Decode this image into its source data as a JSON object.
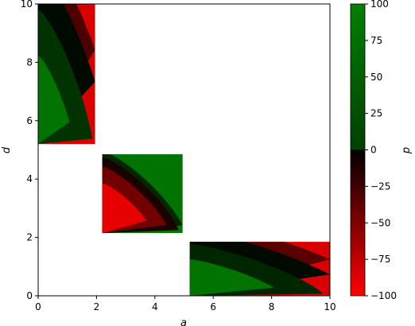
{
  "chart_data": {
    "type": "heatmap",
    "xlabel": "a",
    "ylabel": "d",
    "xlim": [
      0,
      10
    ],
    "ylim": [
      0,
      10
    ],
    "x_ticks": [
      "0",
      "2",
      "4",
      "6",
      "8",
      "10"
    ],
    "y_ticks": [
      "0",
      "2",
      "4",
      "6",
      "8",
      "10"
    ],
    "grid": false,
    "colorbar": {
      "label": "p",
      "range": [
        -100,
        100
      ],
      "ticks": [
        "100",
        "75",
        "50",
        "25",
        "0",
        "−25",
        "−50",
        "−75",
        "−100"
      ],
      "tick_values": [
        100,
        75,
        50,
        25,
        0,
        -25,
        -50,
        -75,
        -100
      ],
      "stops": [
        {
          "value": -100,
          "color": "#ff0000"
        },
        {
          "value": 0,
          "color": "#000000"
        },
        {
          "value": 100,
          "color": "#008000"
        }
      ]
    },
    "blocks": [
      {
        "a": [
          0,
          1.95
        ],
        "d": [
          5.2,
          10
        ],
        "level_sets": [
          {
            "value": 90,
            "corner": "a0-d0",
            "extent": 0.55
          },
          {
            "value": 40,
            "corner": "a0-d0",
            "extent": 0.95
          },
          {
            "value": 8,
            "corner": "a0-d0",
            "extent": 1.35
          },
          {
            "value": -30,
            "corner": "a0-d0",
            "extent": 1.6
          },
          {
            "value": -85,
            "corner": "a0-d0",
            "extent": 1.8
          }
        ]
      },
      {
        "a": [
          2.2,
          4.95
        ],
        "d": [
          2.15,
          4.85
        ],
        "level_sets": [
          {
            "value": -90,
            "corner": "a0-d0",
            "extent": 0.55
          },
          {
            "value": -45,
            "corner": "a0-d0",
            "extent": 0.8
          },
          {
            "value": -10,
            "corner": "a0-d0",
            "extent": 0.95
          },
          {
            "value": 30,
            "corner": "a0-d0",
            "extent": 1.05
          },
          {
            "value": 90,
            "corner": "a0-d0",
            "extent": 1.6
          }
        ]
      },
      {
        "a": [
          5.2,
          10
        ],
        "d": [
          0,
          1.85
        ],
        "level_sets": [
          {
            "value": 90,
            "corner": "a0-d0",
            "extent": 0.6
          },
          {
            "value": 30,
            "corner": "a0-d0",
            "extent": 0.95
          },
          {
            "value": 8,
            "corner": "a0-d0",
            "extent": 1.3
          },
          {
            "value": -35,
            "corner": "a0-d0",
            "extent": 1.6
          },
          {
            "value": -85,
            "corner": "a0-d0",
            "extent": 1.85
          }
        ]
      }
    ]
  }
}
